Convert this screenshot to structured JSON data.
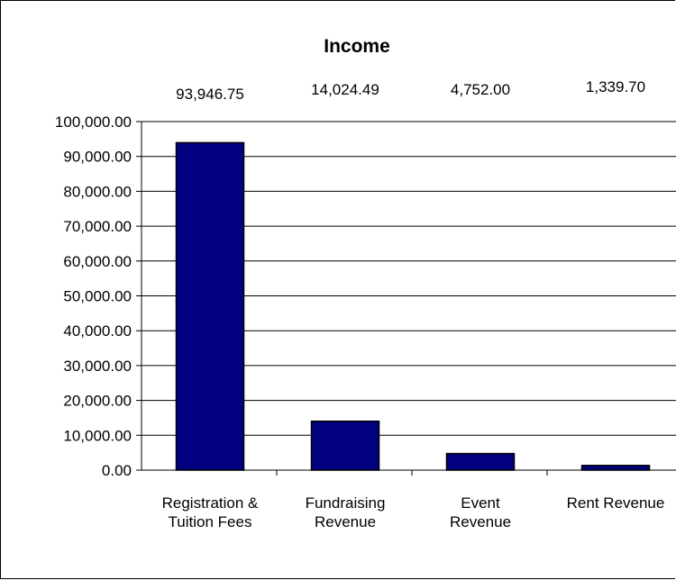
{
  "chart_data": {
    "type": "bar",
    "title": "Income",
    "xlabel": "",
    "ylabel": "",
    "categories": [
      [
        "Registration &",
        "Tuition Fees"
      ],
      [
        "Fundraising",
        "Revenue"
      ],
      [
        "Event",
        "Revenue"
      ],
      [
        "Rent Revenue"
      ]
    ],
    "values": [
      93946.75,
      14024.49,
      4752.0,
      1339.7
    ],
    "data_labels": [
      "93,946.75",
      "14,024.49",
      "4,752.00",
      "1,339.70"
    ],
    "ylim": [
      0,
      100000
    ],
    "yticks": [
      0,
      10000,
      20000,
      30000,
      40000,
      50000,
      60000,
      70000,
      80000,
      90000,
      100000
    ],
    "ytick_labels": [
      "0.00",
      "10,000.00",
      "20,000.00",
      "30,000.00",
      "40,000.00",
      "50,000.00",
      "60,000.00",
      "70,000.00",
      "80,000.00",
      "90,000.00",
      "100,000.00"
    ],
    "grid": true,
    "legend": "none",
    "bar_color": "#000080",
    "bar_edge_color": "#000000"
  }
}
